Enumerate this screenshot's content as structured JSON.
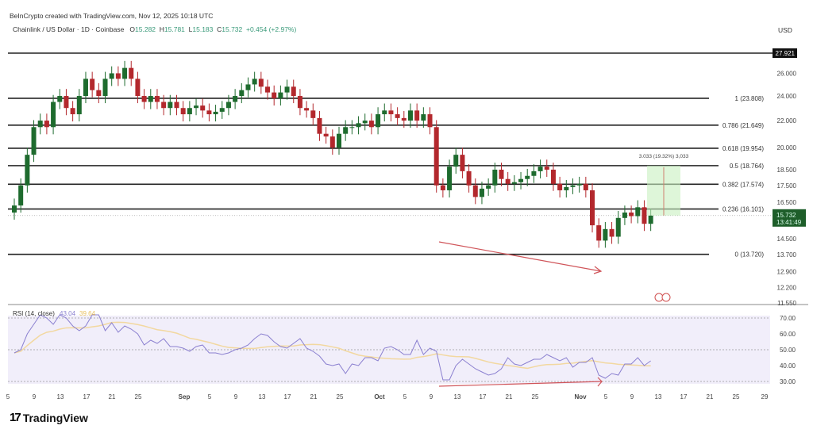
{
  "header": {
    "credit": "BeInCrypto created with TradingView.com, Nov 12, 2025 10:18 UTC",
    "symbol": "Chainlink / US Dollar · 1D · Coinbase",
    "o_label": "O",
    "o": "15.282",
    "h_label": "H",
    "h": "15.781",
    "l_label": "L",
    "l": "15.183",
    "c_label": "C",
    "c": "15.732",
    "change": "+0.454 (+2.97%)"
  },
  "currency": "USD",
  "colors": {
    "up": "#1e6b2e",
    "down": "#b3282d",
    "rsi": "#8b80d0",
    "rsi_ma": "#f2d8a0",
    "arrow": "#d0555a"
  },
  "price_axis": [
    "26.000",
    "24.000",
    "22.000",
    "20.000",
    "18.500",
    "17.500",
    "16.500",
    "14.500",
    "13.700",
    "12.900",
    "12.200",
    "11.550"
  ],
  "high_marker": "27.921",
  "last_price": "15.732",
  "countdown": "13:41:49",
  "fib_levels": [
    {
      "label": "1 (23.808)",
      "value": 23.808
    },
    {
      "label": "0.786 (21.649)",
      "value": 21.649
    },
    {
      "label": "0.618 (19.954)",
      "value": 19.954
    },
    {
      "label": "0.5 (18.764)",
      "value": 18.764
    },
    {
      "label": "0.382 (17.574)",
      "value": 17.574
    },
    {
      "label": "0.236 (16.101)",
      "value": 16.101
    },
    {
      "label": "0 (13.720)",
      "value": 13.72
    }
  ],
  "measure": {
    "label": "3.033 (19.32%) 3,033",
    "from": 15.732,
    "to": 18.764
  },
  "rsi": {
    "title": "RSI (14, close)",
    "value": "43.04",
    "ma_value": "39.64",
    "axis": [
      "70.00",
      "60.00",
      "50.00",
      "40.00",
      "30.00"
    ]
  },
  "x_axis": [
    "5",
    "9",
    "13",
    "17",
    "21",
    "25",
    "Sep",
    "5",
    "9",
    "13",
    "17",
    "21",
    "25",
    "Oct",
    "5",
    "9",
    "13",
    "17",
    "21",
    "25",
    "Nov",
    "5",
    "9",
    "13",
    "17",
    "21",
    "25",
    "29"
  ],
  "logo": "TradingView",
  "chart_data": {
    "type": "candlestick",
    "start_date": "Aug 6",
    "first_open": 15.9,
    "closes": [
      16.3,
      17.5,
      19.5,
      21.5,
      22,
      21.5,
      23.5,
      24,
      23,
      22.5,
      24,
      25.5,
      24.5,
      24,
      25.5,
      26,
      25.5,
      26.5,
      25.5,
      24,
      23.5,
      24,
      23.5,
      23,
      23.5,
      23,
      22.5,
      23,
      23.2,
      22.8,
      22.5,
      22.7,
      23,
      23.5,
      24,
      24.5,
      25,
      25.5,
      24.8,
      24.3,
      23.8,
      24.3,
      24.8,
      24,
      23,
      22.8,
      22.2,
      21,
      20.8,
      20,
      21,
      21.5,
      21.5,
      21.8,
      22,
      21.5,
      22.5,
      22.8,
      22.5,
      22.2,
      22,
      22.8,
      22,
      22.5,
      21.5,
      17.5,
      17.2,
      18.7,
      19.5,
      18.4,
      17.5,
      16.8,
      17.3,
      17.5,
      18.5,
      17.9,
      17.6,
      17.7,
      17.9,
      18.1,
      18.4,
      18.7,
      18.5,
      17.6,
      17.2,
      17.4,
      17.5,
      17.6,
      17.2,
      15.2,
      14.4,
      15,
      14.6,
      15.6,
      15.9,
      15.7,
      16.2,
      15.28,
      15.73
    ],
    "rsi": [
      48,
      50,
      60,
      66,
      72,
      70,
      66,
      72,
      70,
      65,
      62,
      65,
      72,
      72,
      62,
      67,
      61,
      65,
      63,
      60,
      53,
      56,
      54,
      57,
      52,
      52,
      51,
      49,
      52,
      53,
      48,
      48,
      47,
      48,
      50,
      51,
      53,
      57,
      60,
      59,
      55,
      52,
      51,
      54,
      57,
      51,
      49,
      46,
      41,
      40,
      41,
      35,
      41,
      40,
      45,
      45,
      43,
      51,
      52,
      50,
      47,
      47,
      56,
      47,
      51,
      49,
      31,
      31,
      40,
      44,
      41,
      38,
      36,
      34,
      35,
      38,
      45,
      41,
      40,
      42,
      44,
      44,
      47,
      45,
      43,
      45,
      39,
      42,
      42,
      45,
      34,
      32,
      35,
      34,
      41,
      41,
      45,
      40,
      43
    ],
    "rsi_bands": [
      70,
      50,
      30
    ],
    "ylim": [
      11.55,
      27.921
    ],
    "scale": "log"
  }
}
